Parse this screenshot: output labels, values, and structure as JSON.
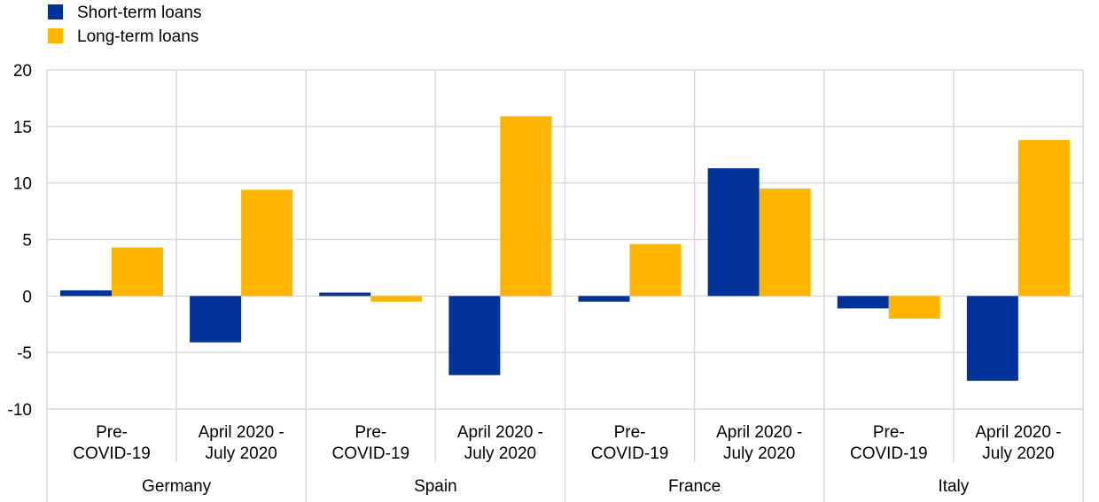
{
  "chart_data": {
    "type": "bar",
    "groups": [
      {
        "name": "Germany",
        "categories": [
          "Pre-\nCOVID-19",
          "April 2020 -\nJuly 2020"
        ]
      },
      {
        "name": "Spain",
        "categories": [
          "Pre-\nCOVID-19",
          "April 2020 -\nJuly 2020"
        ]
      },
      {
        "name": "France",
        "categories": [
          "Pre-\nCOVID-19",
          "April 2020 -\nJuly 2020"
        ]
      },
      {
        "name": "Italy",
        "categories": [
          "Pre-\nCOVID-19",
          "April 2020 -\nJuly 2020"
        ]
      }
    ],
    "series": [
      {
        "name": "Short-term loans",
        "color": "#003299",
        "values": [
          0.5,
          -4.1,
          0.3,
          -7.0,
          -0.5,
          11.3,
          -1.1,
          -7.5
        ]
      },
      {
        "name": "Long-term loans",
        "color": "#FFB400",
        "values": [
          4.3,
          9.4,
          -0.5,
          15.9,
          4.6,
          9.5,
          -2.0,
          13.8
        ]
      }
    ],
    "ylim": [
      -10,
      20
    ],
    "yticks": [
      20,
      15,
      10,
      5,
      0,
      -5,
      -10
    ],
    "grid": true,
    "legend_position": "top-left"
  }
}
